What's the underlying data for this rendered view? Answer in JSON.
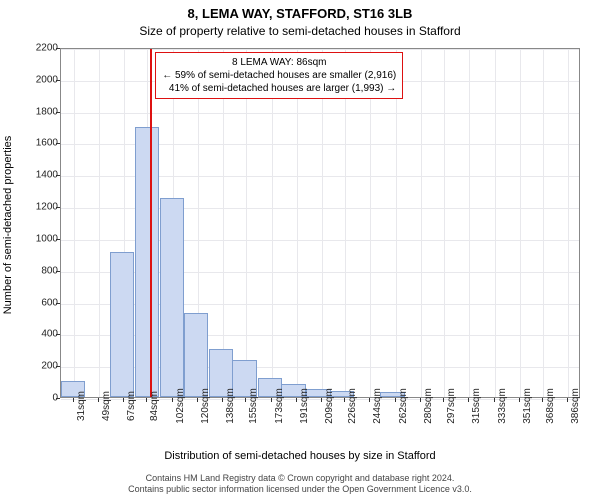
{
  "title": "8, LEMA WAY, STAFFORD, ST16 3LB",
  "subtitle": "Size of property relative to semi-detached houses in Stafford",
  "ylabel": "Number of semi-detached properties",
  "xlabel": "Distribution of semi-detached houses by size in Stafford",
  "chart": {
    "type": "histogram",
    "background_color": "#ffffff",
    "grid_color": "#e8e8ec",
    "bar_fill": "#ccd9f2",
    "bar_border": "#7f9ecf",
    "marker_color": "#d11",
    "marker_value": 86,
    "ylim": [
      0,
      2200
    ],
    "ytick_step": 200,
    "xlim": [
      22,
      395
    ],
    "xticks": [
      31,
      49,
      67,
      84,
      102,
      120,
      138,
      155,
      173,
      191,
      209,
      226,
      244,
      262,
      280,
      297,
      315,
      333,
      351,
      368,
      386
    ],
    "xtick_suffix": "sqm",
    "bin_width": 17.5,
    "bins": [
      {
        "start": 22,
        "count": 100
      },
      {
        "start": 40,
        "count": 0
      },
      {
        "start": 57,
        "count": 910
      },
      {
        "start": 75,
        "count": 1700
      },
      {
        "start": 93,
        "count": 1250
      },
      {
        "start": 110,
        "count": 530
      },
      {
        "start": 128,
        "count": 300
      },
      {
        "start": 145,
        "count": 230
      },
      {
        "start": 163,
        "count": 120
      },
      {
        "start": 180,
        "count": 80
      },
      {
        "start": 198,
        "count": 50
      },
      {
        "start": 215,
        "count": 40
      },
      {
        "start": 233,
        "count": 0
      },
      {
        "start": 251,
        "count": 30
      },
      {
        "start": 268,
        "count": 0
      },
      {
        "start": 286,
        "count": 0
      },
      {
        "start": 303,
        "count": 0
      },
      {
        "start": 321,
        "count": 0
      },
      {
        "start": 338,
        "count": 0
      },
      {
        "start": 356,
        "count": 0
      },
      {
        "start": 373,
        "count": 0
      }
    ]
  },
  "annotation": {
    "line1": "8 LEMA WAY: 86sqm",
    "line2": "← 59% of semi-detached houses are smaller (2,916)",
    "line3": "41% of semi-detached houses are larger (1,993) →"
  },
  "footer1": "Contains HM Land Registry data © Crown copyright and database right 2024.",
  "footer2": "Contains public sector information licensed under the Open Government Licence v3.0."
}
